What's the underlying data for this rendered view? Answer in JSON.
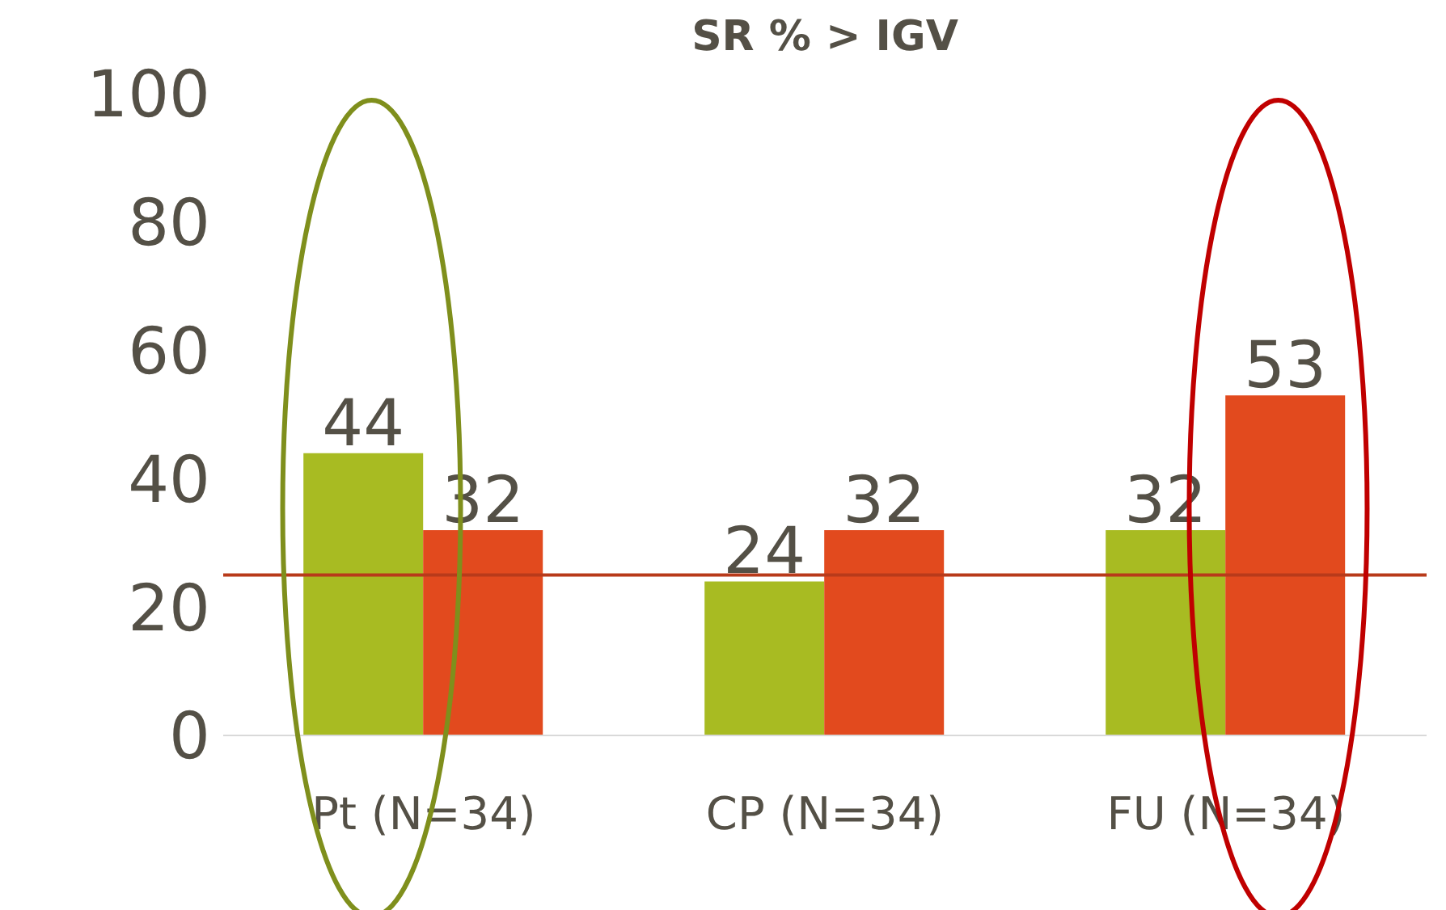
{
  "chart_data": {
    "type": "bar",
    "title": "SR % > IGV",
    "categories": [
      "Pt (N=34)",
      "CP (N=34)",
      "FU (N=34)"
    ],
    "series": [
      {
        "color": "#a8bb22",
        "values": [
          44,
          24,
          32
        ]
      },
      {
        "color": "#e24a1e",
        "values": [
          32,
          32,
          53
        ]
      }
    ],
    "ylim": [
      0,
      100
    ],
    "yticks": [
      0,
      20,
      40,
      60,
      80,
      100
    ],
    "grid": false,
    "legend": false,
    "data_labels": true,
    "ref_lines": [
      {
        "axis": "y",
        "value": 25,
        "color": "#b83a1a",
        "line_style": "solid"
      }
    ]
  }
}
